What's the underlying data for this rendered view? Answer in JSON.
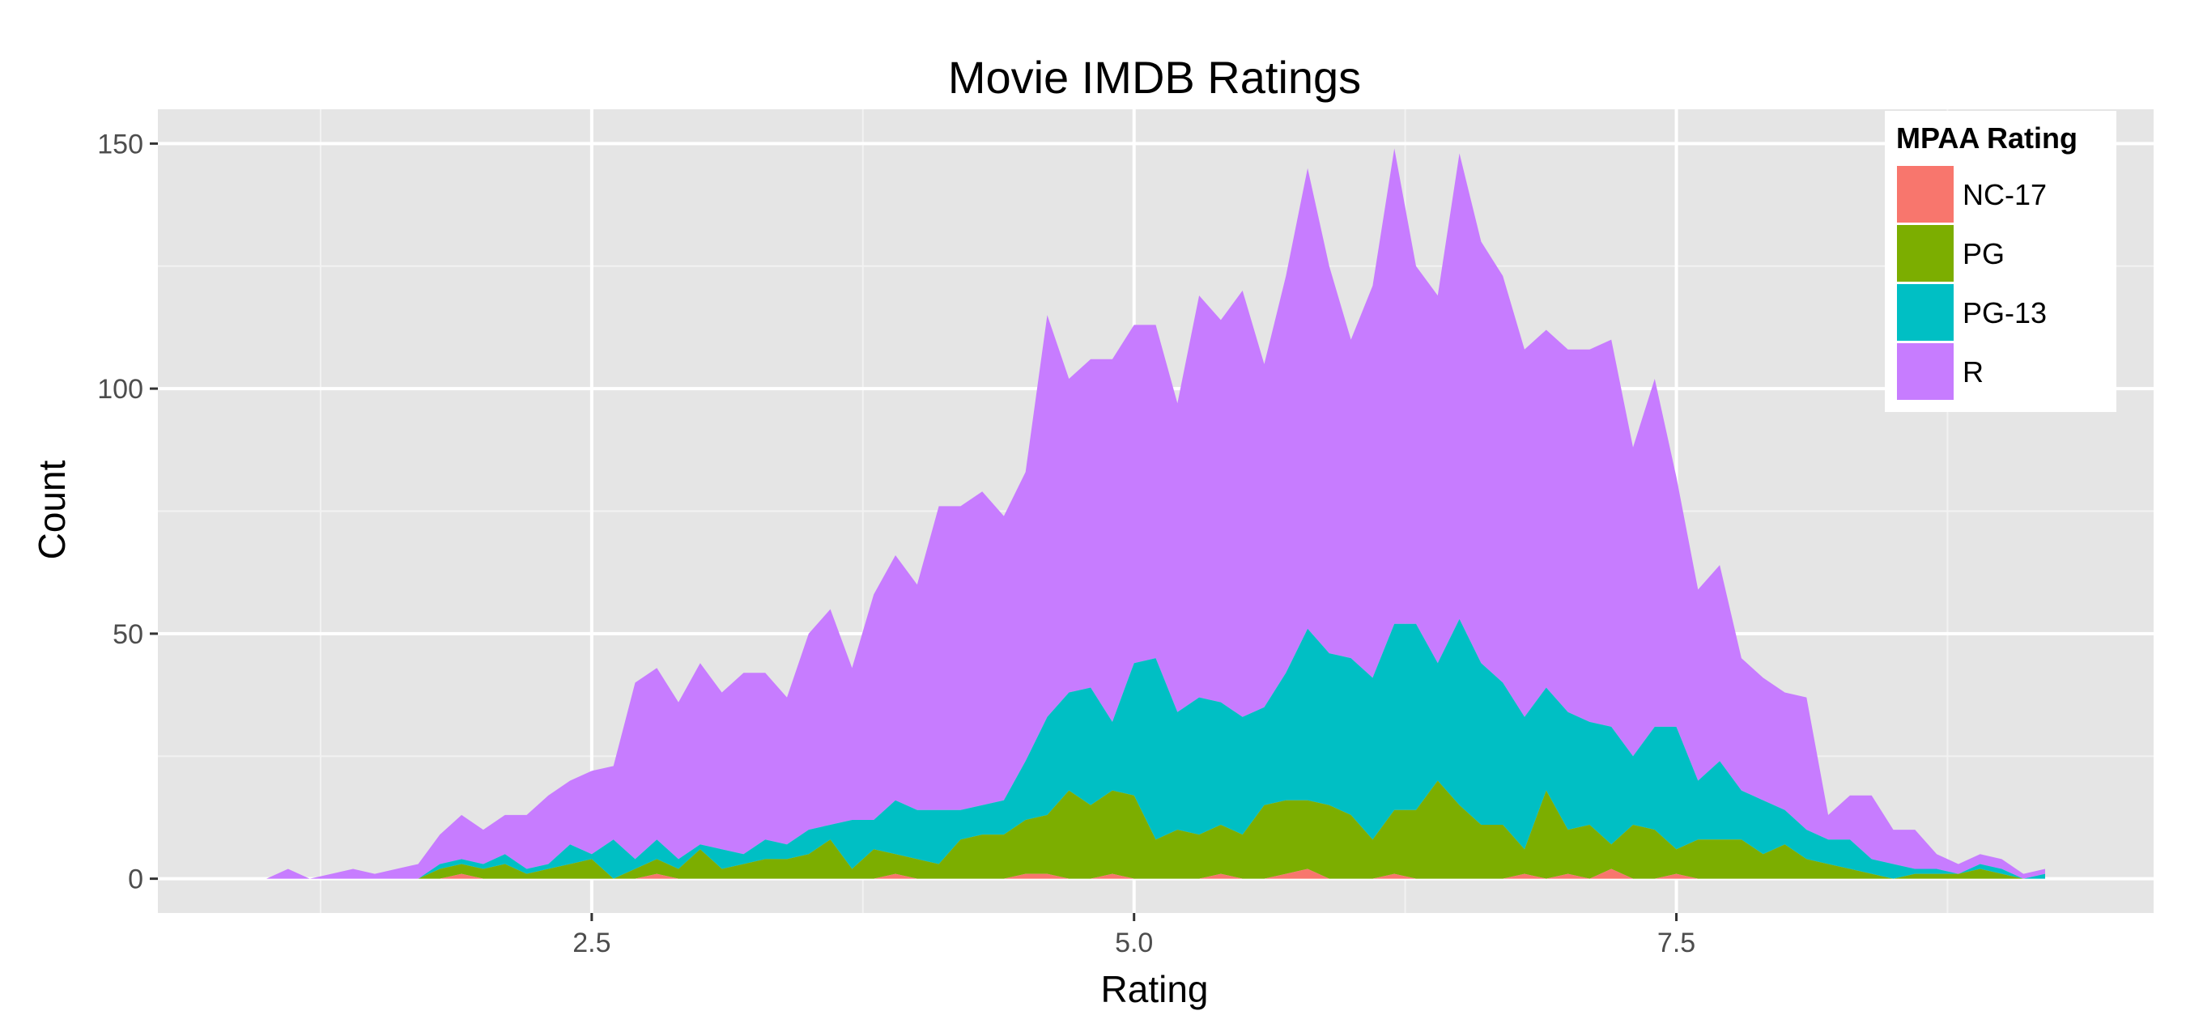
{
  "chart_data": {
    "type": "area",
    "stacked": true,
    "title": "Movie IMDB Ratings",
    "xlabel": "Rating",
    "ylabel": "Count",
    "xlim": [
      0.5,
      9.7
    ],
    "ylim": [
      -7,
      157
    ],
    "x_ticks": [
      2.5,
      5.0,
      7.5
    ],
    "x_tick_labels": [
      "2.5",
      "5.0",
      "7.5"
    ],
    "y_ticks": [
      0,
      50,
      100,
      150
    ],
    "y_tick_labels": [
      "0",
      "50",
      "100",
      "150"
    ],
    "grid": true,
    "legend": {
      "title": "MPAA Rating",
      "position": "top-right"
    },
    "x": [
      1.0,
      1.1,
      1.2,
      1.3,
      1.4,
      1.5,
      1.6,
      1.7,
      1.8,
      1.9,
      2.0,
      2.1,
      2.2,
      2.3,
      2.4,
      2.5,
      2.6,
      2.7,
      2.8,
      2.9,
      3.0,
      3.1,
      3.2,
      3.3,
      3.4,
      3.5,
      3.6,
      3.7,
      3.8,
      3.9,
      4.0,
      4.1,
      4.2,
      4.3,
      4.4,
      4.5,
      4.6,
      4.7,
      4.8,
      4.9,
      5.0,
      5.1,
      5.2,
      5.3,
      5.4,
      5.5,
      5.6,
      5.7,
      5.8,
      5.9,
      6.0,
      6.1,
      6.2,
      6.3,
      6.4,
      6.5,
      6.6,
      6.7,
      6.8,
      6.9,
      7.0,
      7.1,
      7.2,
      7.3,
      7.4,
      7.5,
      7.6,
      7.7,
      7.8,
      7.9,
      8.0,
      8.1,
      8.2,
      8.3,
      8.4,
      8.5,
      8.6,
      8.7,
      8.8,
      8.9,
      9.0,
      9.1,
      9.2
    ],
    "series": [
      {
        "name": "NC-17",
        "color": "#F8766D",
        "values": [
          0,
          0,
          0,
          0,
          0,
          0,
          0,
          0,
          0,
          1,
          0,
          0,
          0,
          0,
          0,
          0,
          0,
          0,
          1,
          0,
          0,
          0,
          0,
          0,
          0,
          0,
          0,
          0,
          0,
          1,
          0,
          0,
          0,
          0,
          0,
          1,
          1,
          0,
          0,
          1,
          0,
          0,
          0,
          0,
          1,
          0,
          0,
          1,
          2,
          0,
          0,
          0,
          1,
          0,
          0,
          0,
          0,
          0,
          1,
          0,
          1,
          0,
          2,
          0,
          0,
          1,
          0,
          0,
          0,
          0,
          0,
          0,
          0,
          0,
          0,
          0,
          0,
          0,
          0,
          0,
          0,
          0,
          0
        ]
      },
      {
        "name": "PG",
        "color": "#7CAE00",
        "values": [
          0,
          0,
          0,
          0,
          0,
          0,
          0,
          0,
          2,
          2,
          2,
          3,
          1,
          2,
          3,
          4,
          0,
          2,
          3,
          2,
          6,
          2,
          3,
          4,
          4,
          5,
          8,
          2,
          6,
          4,
          4,
          3,
          8,
          9,
          9,
          11,
          12,
          18,
          15,
          17,
          17,
          8,
          10,
          9,
          10,
          9,
          15,
          15,
          14,
          15,
          13,
          8,
          13,
          14,
          20,
          15,
          11,
          11,
          5,
          18,
          9,
          11,
          5,
          11,
          10,
          5,
          8,
          8,
          8,
          5,
          7,
          4,
          3,
          2,
          1,
          0,
          1,
          1,
          1,
          2,
          1,
          0,
          0
        ]
      },
      {
        "name": "PG-13",
        "color": "#00BFC4",
        "values": [
          0,
          0,
          0,
          0,
          0,
          0,
          0,
          0,
          1,
          1,
          1,
          2,
          1,
          1,
          4,
          1,
          8,
          2,
          4,
          2,
          1,
          4,
          2,
          4,
          3,
          5,
          3,
          10,
          6,
          11,
          10,
          11,
          6,
          6,
          7,
          12,
          20,
          20,
          24,
          14,
          27,
          37,
          24,
          28,
          25,
          24,
          20,
          26,
          35,
          31,
          32,
          33,
          38,
          38,
          24,
          38,
          33,
          29,
          27,
          21,
          24,
          21,
          24,
          14,
          21,
          25,
          12,
          16,
          10,
          11,
          7,
          6,
          5,
          6,
          3,
          3,
          1,
          1,
          0,
          1,
          1,
          0,
          1
        ]
      },
      {
        "name": "R",
        "color": "#C77CFF",
        "values": [
          0,
          2,
          0,
          1,
          2,
          1,
          2,
          3,
          6,
          9,
          7,
          8,
          11,
          14,
          13,
          17,
          15,
          36,
          35,
          32,
          37,
          32,
          37,
          34,
          30,
          40,
          44,
          31,
          46,
          50,
          46,
          62,
          62,
          64,
          58,
          59,
          82,
          64,
          67,
          74,
          69,
          68,
          63,
          82,
          78,
          87,
          70,
          81,
          94,
          79,
          65,
          80,
          97,
          73,
          75,
          95,
          86,
          83,
          75,
          73,
          74,
          76,
          79,
          63,
          71,
          51,
          39,
          40,
          27,
          25,
          24,
          27,
          5,
          9,
          13,
          7,
          8,
          3,
          2,
          2,
          2,
          1,
          1
        ]
      }
    ]
  }
}
